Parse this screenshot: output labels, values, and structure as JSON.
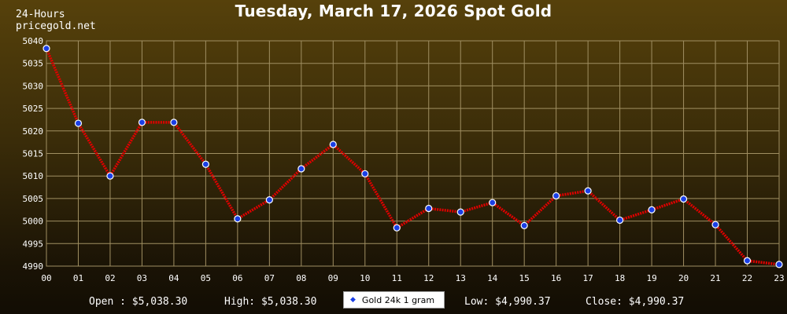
{
  "chart_data": {
    "type": "line",
    "title": "Tuesday, March 17, 2026 Spot Gold",
    "period_label": "24-Hours",
    "site": "pricegold.net",
    "x": [
      "00",
      "01",
      "02",
      "03",
      "04",
      "05",
      "06",
      "07",
      "08",
      "09",
      "10",
      "11",
      "12",
      "13",
      "14",
      "15",
      "16",
      "17",
      "18",
      "19",
      "20",
      "21",
      "22",
      "23"
    ],
    "series": [
      {
        "name": "Gold 24k 1 gram",
        "values": [
          5038.3,
          5021.7,
          5010.0,
          5021.9,
          5021.9,
          5012.6,
          5000.5,
          5004.7,
          5011.6,
          5017.0,
          5010.5,
          4998.5,
          5002.8,
          5002.0,
          5004.1,
          4999.0,
          5005.6,
          5006.7,
          5000.2,
          5002.5,
          5004.9,
          4999.2,
          4991.2,
          4990.37
        ]
      }
    ],
    "ylim": [
      4990,
      5040
    ],
    "yticks": [
      "4990",
      "4995",
      "5000",
      "5005",
      "5010",
      "5015",
      "5020",
      "5025",
      "5030",
      "5035",
      "5040"
    ],
    "grid": true,
    "legend_position": "bottom-center",
    "colors": {
      "line": "#e00000",
      "marker": "#1a3fe6",
      "grid": "#a08f62"
    }
  },
  "stats": {
    "open": "Open : $5,038.30",
    "high": "High: $5,038.30",
    "low": "Low: $4,990.37",
    "close": "Close: $4,990.37"
  }
}
